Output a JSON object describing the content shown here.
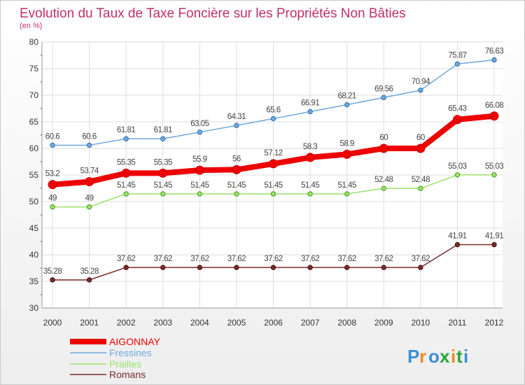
{
  "chart_data": {
    "type": "line",
    "title": "Evolution du Taux de Taxe Foncière sur les Propriétés Non Bâties",
    "subtitle": "(en %)",
    "xlabel": "",
    "ylabel": "",
    "ylim": [
      30,
      80
    ],
    "yticks": [
      "30",
      "35",
      "40",
      "45",
      "50",
      "55",
      "60",
      "65",
      "70",
      "75",
      "80"
    ],
    "x": [
      "2000",
      "2001",
      "2002",
      "2003",
      "2004",
      "2005",
      "2006",
      "2007",
      "2008",
      "2009",
      "2010",
      "2011",
      "2012"
    ],
    "grid": true,
    "legend_position": "bottom-left",
    "series": [
      {
        "name": "Fressines",
        "color": "#6fa8dc",
        "values": [
          60.6,
          60.6,
          61.81,
          61.81,
          63.05,
          64.31,
          65.6,
          66.91,
          68.21,
          69.56,
          70.94,
          75.87,
          76.63
        ],
        "labels": [
          "60.6",
          "60.6",
          "61.81",
          "61.81",
          "63.05",
          "64.31",
          "65.6",
          "66.91",
          "68.21",
          "69.56",
          "70.94",
          "75.87",
          "76.63"
        ]
      },
      {
        "name": "AIGONNAY",
        "color": "#ee0000",
        "values": [
          53.2,
          53.74,
          55.35,
          55.35,
          55.9,
          56,
          57.12,
          58.3,
          58.9,
          60,
          60,
          65.43,
          66.08
        ],
        "labels": [
          "53.2",
          "53.74",
          "55.35",
          "55.35",
          "55.9",
          "56",
          "57.12",
          "58.3",
          "58.9",
          "60",
          "60",
          "65.43",
          "66.08"
        ]
      },
      {
        "name": "Prailles",
        "color": "#99e26a",
        "values": [
          49,
          49,
          51.45,
          51.45,
          51.45,
          51.45,
          51.45,
          51.45,
          51.45,
          52.48,
          52.48,
          55.03,
          55.03
        ],
        "labels": [
          "49",
          "49",
          "51.45",
          "51.45",
          "51.45",
          "51.45",
          "51.45",
          "51.45",
          "51.45",
          "52.48",
          "52.48",
          "55.03",
          "55.03"
        ]
      },
      {
        "name": "Romans",
        "color": "#7a2a2a",
        "values": [
          35.28,
          35.28,
          37.62,
          37.62,
          37.62,
          37.62,
          37.62,
          37.62,
          37.62,
          37.62,
          37.62,
          41.91,
          41.91
        ],
        "labels": [
          "35.28",
          "35.28",
          "37.62",
          "37.62",
          "37.62",
          "37.62",
          "37.62",
          "37.62",
          "37.62",
          "37.62",
          "37.62",
          "41.91",
          "41.91"
        ]
      }
    ],
    "legend": [
      "AIGONNAY",
      "Fressines",
      "Prailles",
      "Romans"
    ]
  },
  "logo": {
    "text": "Proxiti",
    "letter_colors": [
      "#3b8fd6",
      "#f08a24",
      "#3b8fd6",
      "#2aa43a",
      "#f08a24",
      "#2aa43a",
      "#3b8fd6"
    ]
  }
}
